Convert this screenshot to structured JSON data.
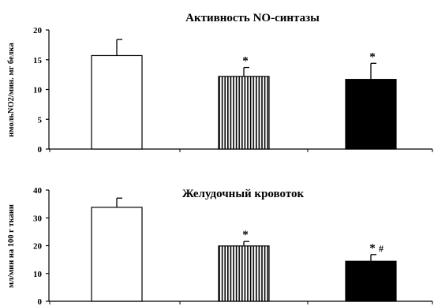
{
  "chart_data": [
    {
      "type": "bar",
      "title": "Активность NO-синтазы",
      "ylabel": "нмольNO2/мин. мг белка",
      "xlabel": "",
      "ylim": [
        0,
        20
      ],
      "yticks": [
        0,
        5,
        10,
        15,
        20
      ],
      "categories": [
        "",
        "",
        ""
      ],
      "values": [
        15.7,
        12.2,
        11.7
      ],
      "errors": [
        2.7,
        1.5,
        2.7
      ],
      "fills": [
        "white",
        "vertical-stripes",
        "black"
      ],
      "annotations": [
        "",
        "*",
        "*"
      ],
      "grid": false
    },
    {
      "type": "bar",
      "title": "Желудочный кровоток",
      "ylabel": "мл/мин на 100 г ткани",
      "xlabel": "",
      "ylim": [
        0,
        40
      ],
      "yticks": [
        0,
        10,
        20,
        30,
        40
      ],
      "categories": [
        "",
        "",
        ""
      ],
      "values": [
        33.8,
        19.9,
        14.4
      ],
      "errors": [
        3.3,
        1.6,
        2.4
      ],
      "fills": [
        "white",
        "vertical-stripes",
        "black"
      ],
      "annotations": [
        "",
        "*",
        "* #"
      ],
      "grid": false
    }
  ]
}
